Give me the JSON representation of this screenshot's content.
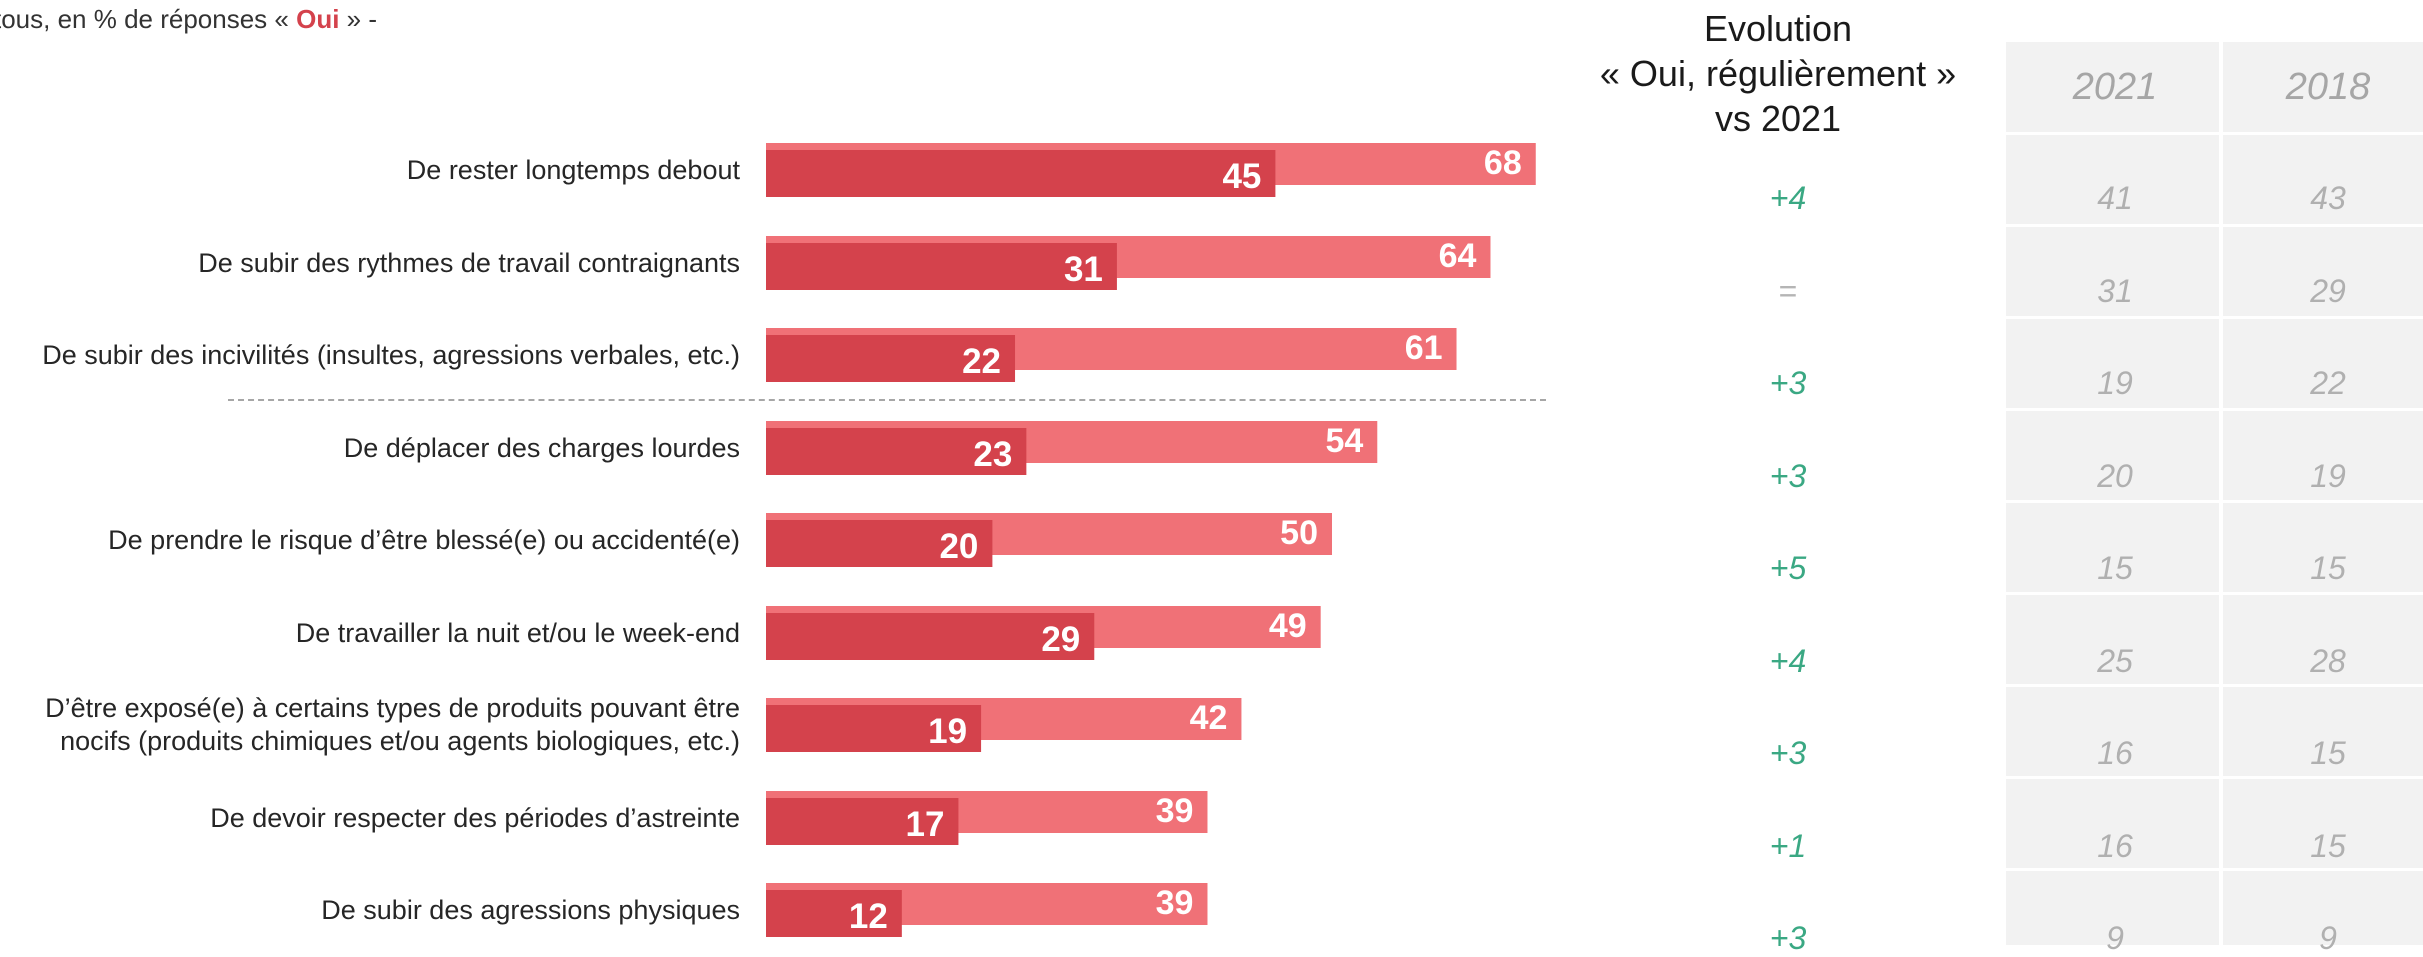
{
  "subtitle": {
    "prefix": "tous, en % de réponses « ",
    "highlight": "Oui",
    "suffix": " »  -"
  },
  "evolution_header": {
    "line1": "Evolution",
    "line2": "« Oui, régulièrement »",
    "line3": "vs 2021"
  },
  "year_columns": [
    "2021",
    "2018"
  ],
  "colors": {
    "regular": "#d4424c",
    "total": "#f07177",
    "evolution": "#3aa883",
    "panel": "#f2f2f2"
  },
  "chart_data": {
    "type": "bar",
    "orientation": "horizontal",
    "categories": [
      "De rester longtemps debout",
      "De subir des rythmes de travail contraignants",
      "De subir des incivilités (insultes, agressions verbales, etc.)",
      "De déplacer des charges lourdes",
      "De prendre le risque d’être blessé(e) ou accidenté(e)",
      "De travailler la nuit et/ou le week-end",
      "D’être exposé(e) à certains types de produits pouvant être nocifs (produits chimiques et/ou agents biologiques, etc.)",
      "De devoir respecter des périodes d’astreinte",
      "De subir des agressions physiques"
    ],
    "series": [
      {
        "values": [
          68,
          64,
          61,
          54,
          50,
          49,
          42,
          39,
          39
        ]
      },
      {
        "values": [
          45,
          31,
          22,
          23,
          20,
          29,
          19,
          17,
          12
        ]
      }
    ],
    "evolution": [
      "+4",
      "=",
      "+3",
      "+3",
      "+5",
      "+4",
      "+3",
      "+1",
      "+3"
    ],
    "y2021": [
      "41",
      "31",
      "19",
      "20",
      "15",
      "25",
      "16",
      "16",
      "9"
    ],
    "y2018": [
      "43",
      "29",
      "22",
      "19",
      "15",
      "28",
      "15",
      "15",
      "9"
    ]
  }
}
